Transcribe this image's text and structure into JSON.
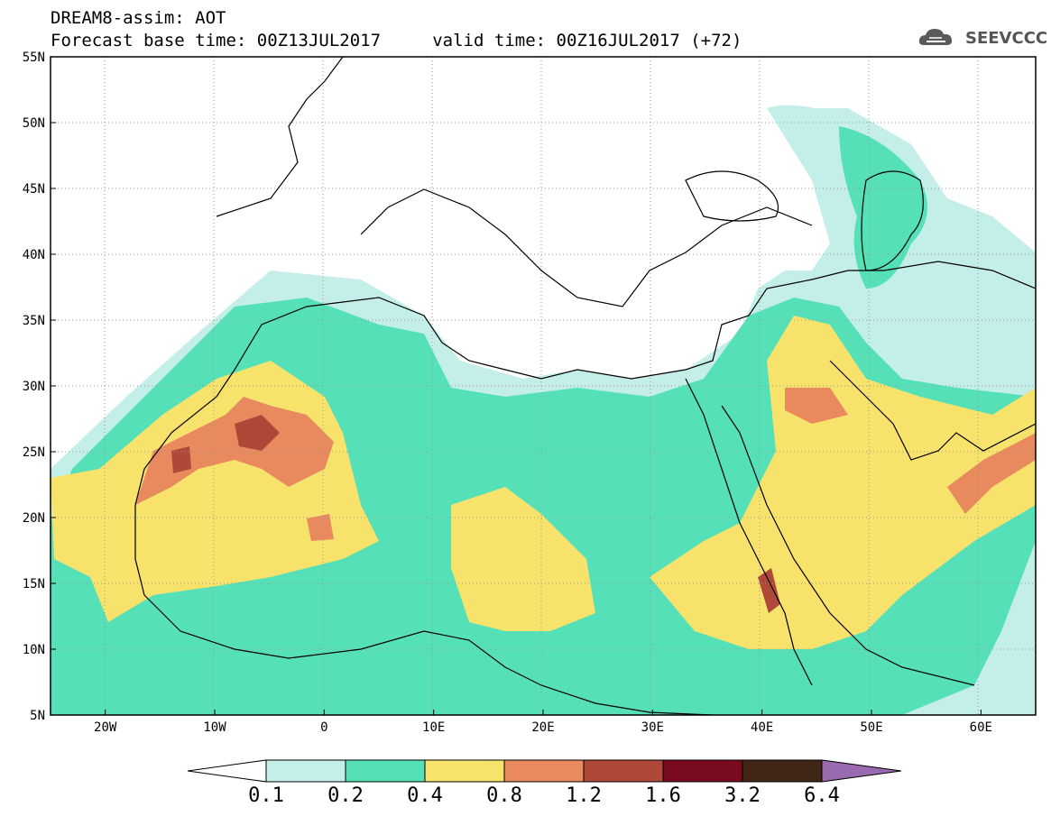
{
  "header": {
    "line1": "DREAM8-assim: AOT",
    "line2": "Forecast base time: 00Z13JUL2017     valid time: 00Z16JUL2017 (+72)"
  },
  "logo": {
    "text": "SEEVCCC",
    "icon": "cloud-icon"
  },
  "map_data": {
    "variable": "AOT",
    "projection": "lat-lon",
    "lon_range": [
      -25,
      65
    ],
    "lat_range": [
      5,
      55
    ],
    "lon_ticks": [
      {
        "value": -20,
        "label": "20W"
      },
      {
        "value": -10,
        "label": "10W"
      },
      {
        "value": 0,
        "label": "0"
      },
      {
        "value": 10,
        "label": "10E"
      },
      {
        "value": 20,
        "label": "20E"
      },
      {
        "value": 30,
        "label": "30E"
      },
      {
        "value": 40,
        "label": "40E"
      },
      {
        "value": 50,
        "label": "50E"
      },
      {
        "value": 60,
        "label": "60E"
      }
    ],
    "lat_ticks": [
      {
        "value": 55,
        "label": "55N"
      },
      {
        "value": 50,
        "label": "50N"
      },
      {
        "value": 45,
        "label": "45N"
      },
      {
        "value": 40,
        "label": "40N"
      },
      {
        "value": 35,
        "label": "35N"
      },
      {
        "value": 30,
        "label": "30N"
      },
      {
        "value": 25,
        "label": "25N"
      },
      {
        "value": 20,
        "label": "20N"
      },
      {
        "value": 15,
        "label": "15N"
      },
      {
        "value": 10,
        "label": "10N"
      },
      {
        "value": 5,
        "label": "5N"
      }
    ],
    "grid": "dotted"
  },
  "colorbar": {
    "levels": [
      "0.1",
      "0.2",
      "0.4",
      "0.8",
      "1.2",
      "1.6",
      "3.2",
      "6.4"
    ],
    "colors": [
      "#ffffff",
      "#c4efe8",
      "#55e0b8",
      "#f7e36b",
      "#e8895e",
      "#b0483a",
      "#7a0a20",
      "#3f2616",
      "#9a6ab0"
    ]
  }
}
